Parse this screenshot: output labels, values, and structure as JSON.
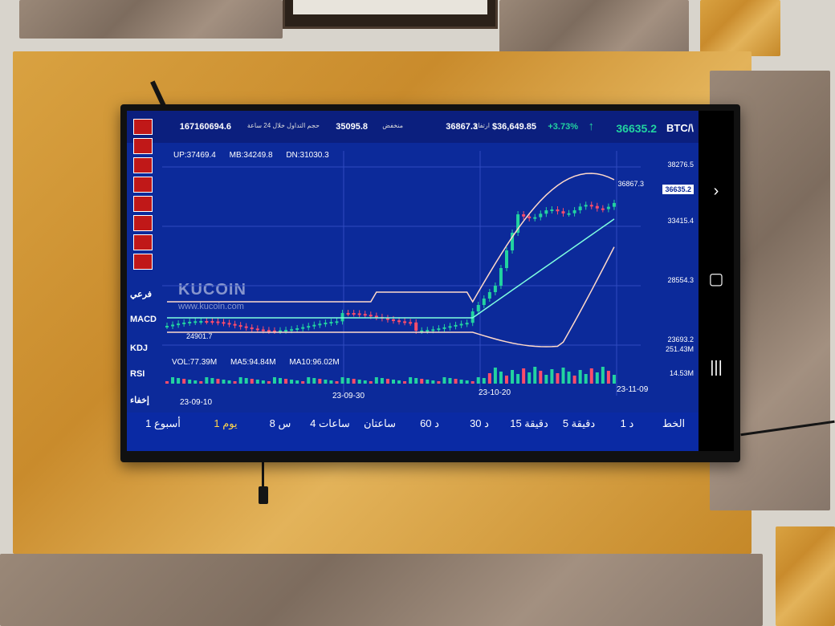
{
  "ticker": {
    "pair": "BTC/\\",
    "last_price": "36635.2",
    "arrow": "↑",
    "change_pct": "+3.73%",
    "usd_price": "$36,649.85",
    "high_label": "ارتفاع",
    "high": "36867.3",
    "low_label": "منخفض",
    "low": "35095.8",
    "volume_label": "حجم التداول خلال 24 ساعة",
    "volume": "167160694.6"
  },
  "boll": {
    "up": "UP:37469.4",
    "mb": "MB:34249.8",
    "dn": "DN:31030.3"
  },
  "vol": {
    "vol": "VOL:77.39M",
    "ma5": "MA5:94.84M",
    "ma10": "MA10:96.02M"
  },
  "side_labels": {
    "sub": "فرعي",
    "macd": "MACD",
    "kdj": "KDJ",
    "rsi": "RSI",
    "hide": "إخفاء"
  },
  "watermark": {
    "name": "KUCOIN",
    "url": "www.kucoin.com"
  },
  "y_axis": [
    "38276.5",
    "33415.4",
    "28554.3",
    "23693.2"
  ],
  "current_price_tag": "36635.2",
  "high_marker": "36867.3",
  "low_marker": "24901.7",
  "vol_axis": [
    "251.43M",
    "14.53M"
  ],
  "x_axis": [
    "23-09-10",
    "23-09-30",
    "23-10-20",
    "23-11-09"
  ],
  "timeframes": [
    {
      "label": "الخط",
      "active": false
    },
    {
      "label": "1 د",
      "active": false
    },
    {
      "label": "5 دقيقة",
      "active": false
    },
    {
      "label": "15 دقيقة",
      "active": false
    },
    {
      "label": "30 د",
      "active": false
    },
    {
      "label": "60 د",
      "active": false
    },
    {
      "label": "ساعتان",
      "active": false
    },
    {
      "label": "4 ساعات",
      "active": false
    },
    {
      "label": "8 س",
      "active": false
    },
    {
      "label": "1 يوم",
      "active": true
    },
    {
      "label": "1 أسبوع",
      "active": false
    }
  ],
  "colors": {
    "up": "#22d3a0",
    "down": "#ff4d6a",
    "screen_bg": "#0c2a9a"
  },
  "nav_icons": [
    "chevron-right-icon",
    "home-icon",
    "recents-icon"
  ]
}
